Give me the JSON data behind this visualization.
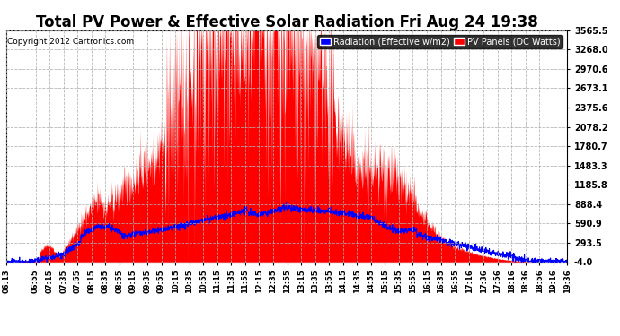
{
  "title": "Total PV Power & Effective Solar Radiation Fri Aug 24 19:38",
  "copyright": "Copyright 2012 Cartronics.com",
  "background_color": "#ffffff",
  "plot_bg_color": "#ffffff",
  "grid_color": "#b0b0b0",
  "yticks": [
    -4.0,
    293.5,
    590.9,
    888.4,
    1185.8,
    1483.3,
    1780.7,
    2078.2,
    2375.6,
    2673.1,
    2970.6,
    3268.0,
    3565.5
  ],
  "ymin": -4.0,
  "ymax": 3565.5,
  "legend_radiation_label": "Radiation (Effective w/m2)",
  "legend_pv_label": "PV Panels (DC Watts)",
  "xtick_labels": [
    "06:13",
    "06:55",
    "07:15",
    "07:35",
    "07:55",
    "08:15",
    "08:35",
    "08:55",
    "09:15",
    "09:35",
    "09:55",
    "10:15",
    "10:35",
    "10:55",
    "11:15",
    "11:35",
    "11:55",
    "12:15",
    "12:35",
    "12:55",
    "13:15",
    "13:35",
    "13:55",
    "14:15",
    "14:35",
    "14:55",
    "15:15",
    "15:35",
    "15:55",
    "16:15",
    "16:35",
    "16:55",
    "17:16",
    "17:36",
    "17:56",
    "18:16",
    "18:36",
    "18:56",
    "19:16",
    "19:36"
  ],
  "pv_color": "#ff0000",
  "radiation_color": "#0000ff",
  "title_color": "#000000",
  "title_fontsize": 12,
  "tick_fontsize": 6,
  "ytick_fontsize": 7
}
